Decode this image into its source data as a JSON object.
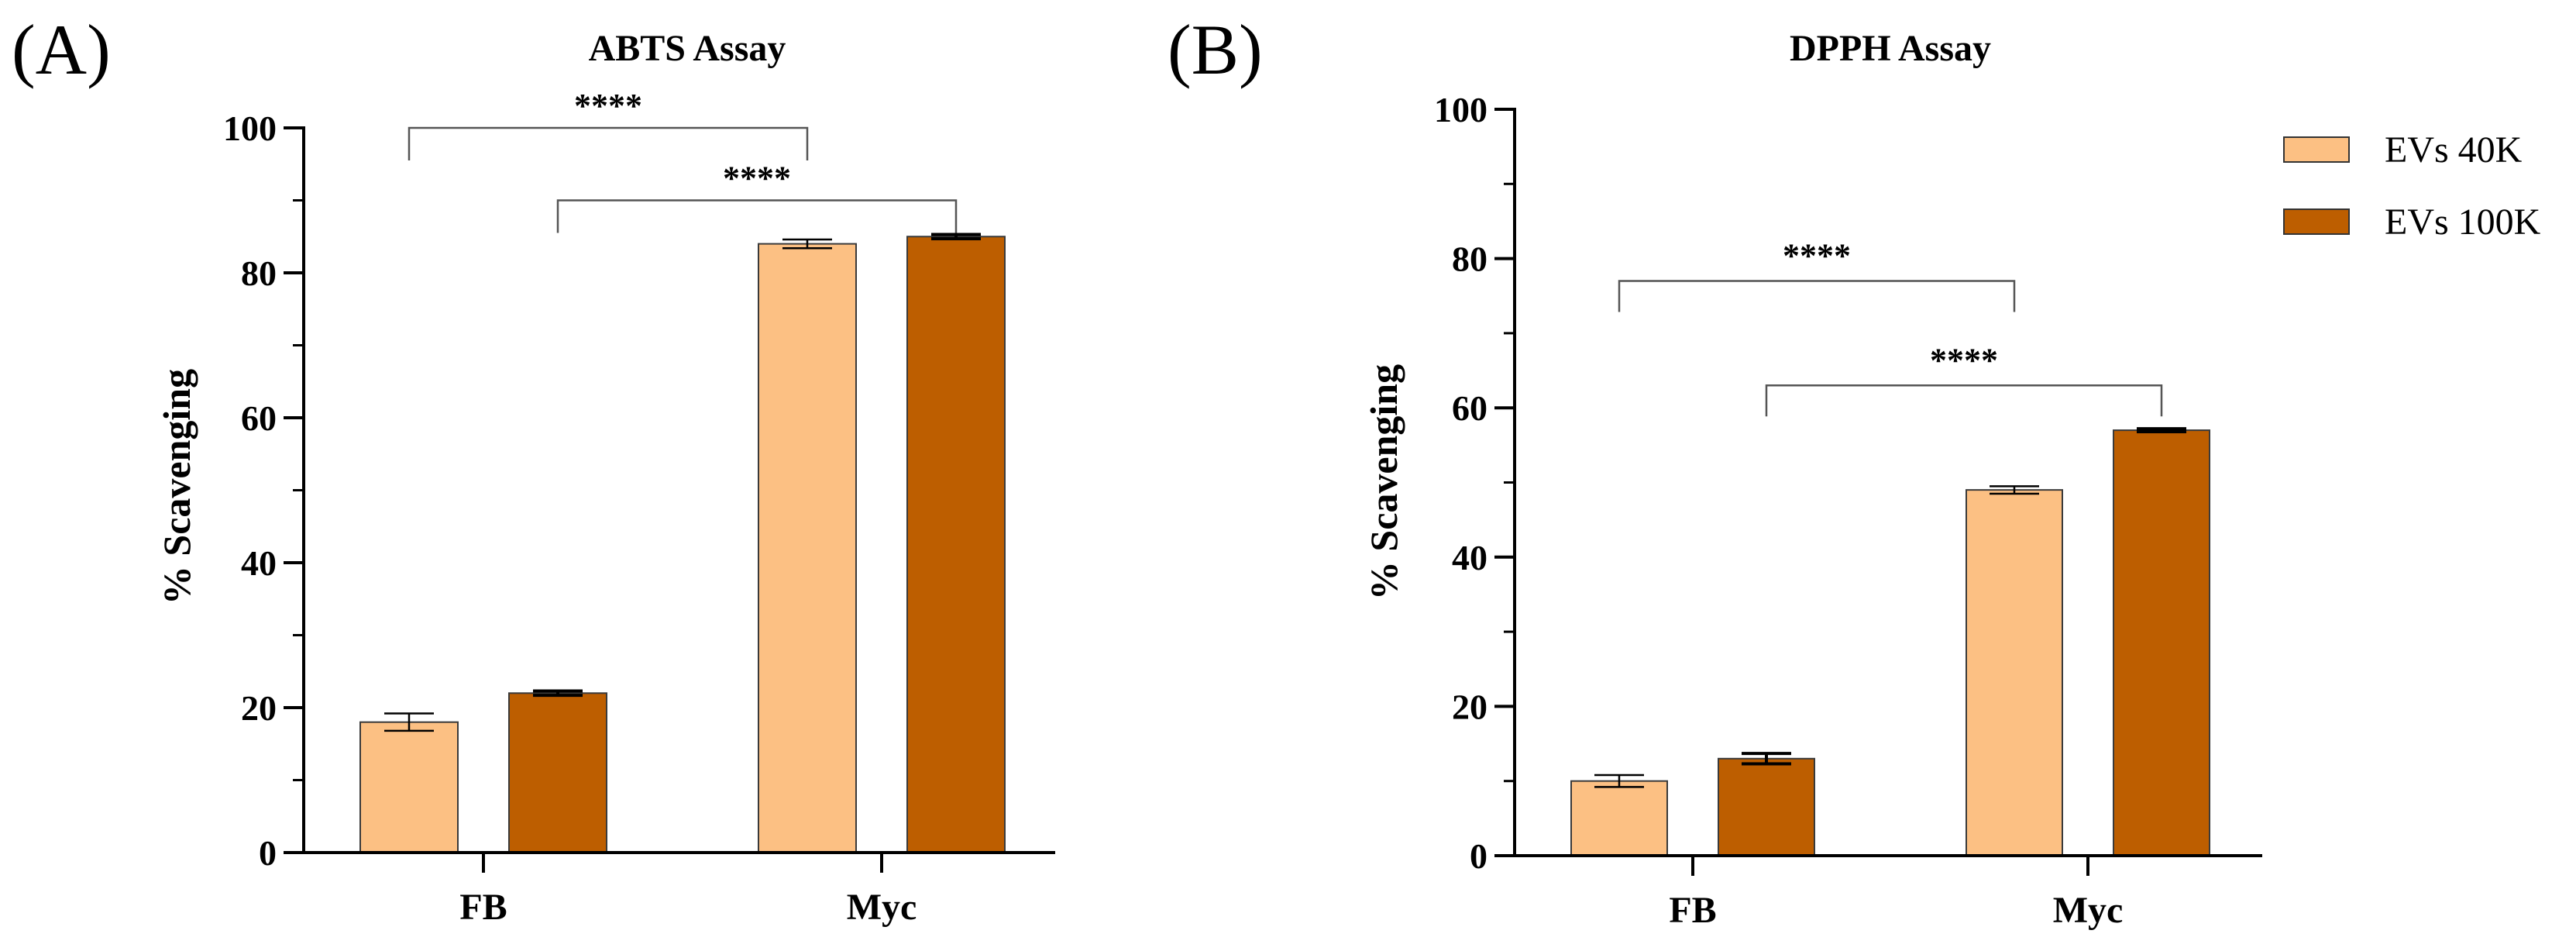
{
  "chart_data": [
    {
      "type": "bar",
      "panel_label": "(A)",
      "title": "ABTS Assay",
      "xlabel": "",
      "ylabel": "% Scavenging",
      "ylim": [
        0,
        100
      ],
      "yticks": [
        0,
        20,
        40,
        60,
        80,
        100
      ],
      "categories": [
        "FB",
        "Myc"
      ],
      "series": [
        {
          "name": "EVs 40K",
          "color": "#FCC083",
          "values": [
            18,
            84
          ],
          "errors": [
            1.2,
            0.6
          ]
        },
        {
          "name": "EVs 100K",
          "color": "#BD5E00",
          "values": [
            22,
            85
          ],
          "errors": [
            0.3,
            0.3
          ]
        }
      ],
      "significance": [
        {
          "label": "****",
          "from": {
            "category": 0,
            "series": 0
          },
          "to": {
            "category": 1,
            "series": 0
          },
          "y": 100
        },
        {
          "label": "****",
          "from": {
            "category": 0,
            "series": 1
          },
          "to": {
            "category": 1,
            "series": 1
          },
          "y": 90
        }
      ]
    },
    {
      "type": "bar",
      "panel_label": "(B)",
      "title": "DPPH Assay",
      "xlabel": "",
      "ylabel": "% Scavenging",
      "ylim": [
        0,
        100
      ],
      "yticks": [
        0,
        20,
        40,
        60,
        80,
        100
      ],
      "categories": [
        "FB",
        "Myc"
      ],
      "series": [
        {
          "name": "EVs 40K",
          "color": "#FCC083",
          "values": [
            10,
            49
          ],
          "errors": [
            0.8,
            0.5
          ]
        },
        {
          "name": "EVs 100K",
          "color": "#BD5E00",
          "values": [
            13,
            57
          ],
          "errors": [
            0.7,
            0.2
          ]
        }
      ],
      "significance": [
        {
          "label": "****",
          "from": {
            "category": 0,
            "series": 0
          },
          "to": {
            "category": 1,
            "series": 0
          },
          "y": 77
        },
        {
          "label": "****",
          "from": {
            "category": 0,
            "series": 1
          },
          "to": {
            "category": 1,
            "series": 1
          },
          "y": 63
        }
      ],
      "legend": {
        "placement": "top-right",
        "entries": [
          {
            "label": "EVs 40K",
            "color": "#FCC083"
          },
          {
            "label": "EVs 100K",
            "color": "#BD5E00"
          }
        ]
      }
    }
  ]
}
